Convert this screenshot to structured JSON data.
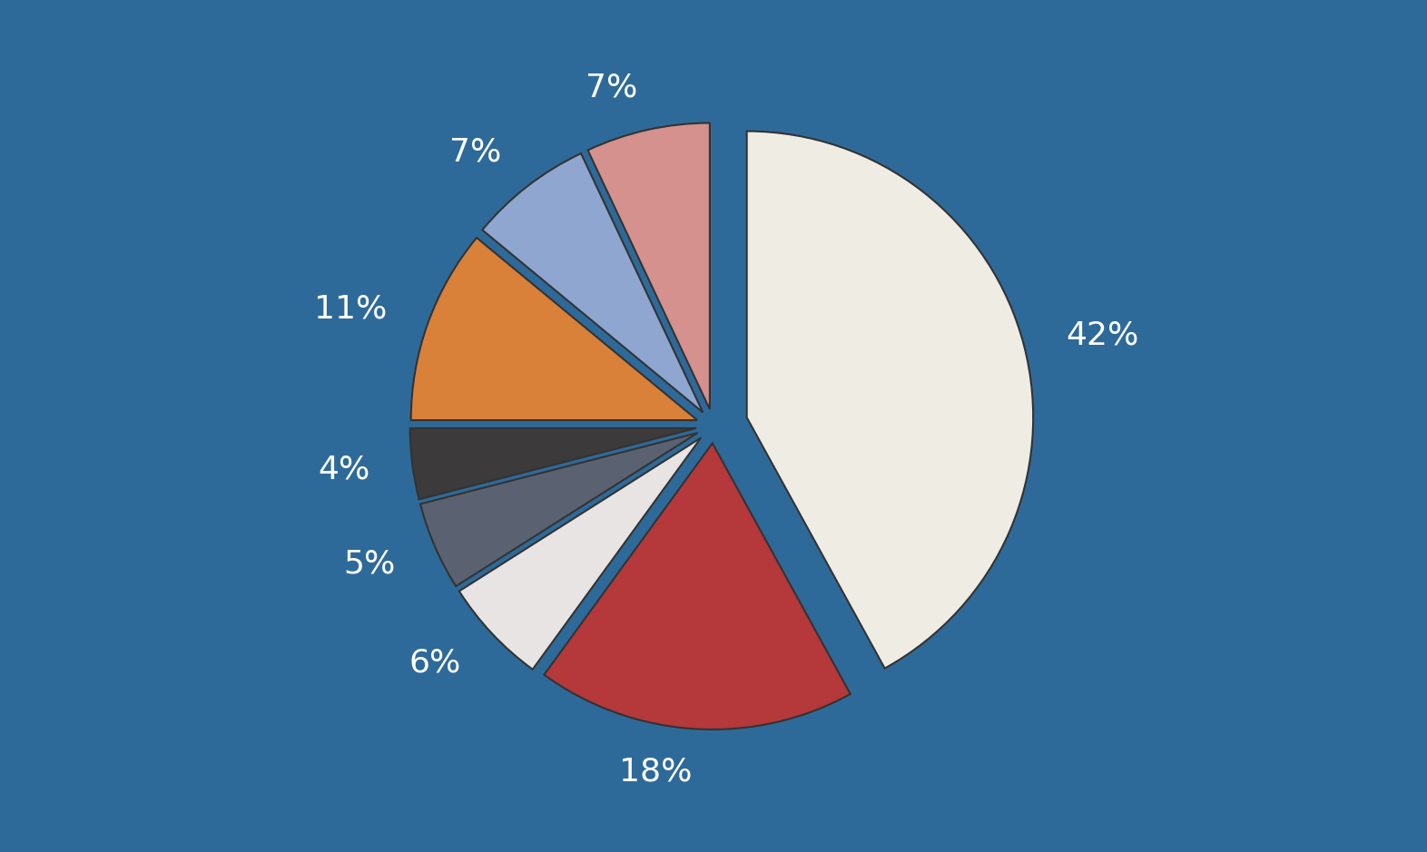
{
  "chart_data": {
    "type": "pie",
    "values": [
      42,
      18,
      6,
      5,
      4,
      11,
      7,
      7
    ],
    "value_labels": [
      "42%",
      "18%",
      "6%",
      "5%",
      "4%",
      "11%",
      "7%",
      "7%"
    ],
    "colors": [
      "#efece4",
      "#b5383a",
      "#e9e4e4",
      "#5a6272",
      "#3c3a3a",
      "#d98039",
      "#8fa6d0",
      "#d4918e"
    ],
    "data_labels": true
  }
}
